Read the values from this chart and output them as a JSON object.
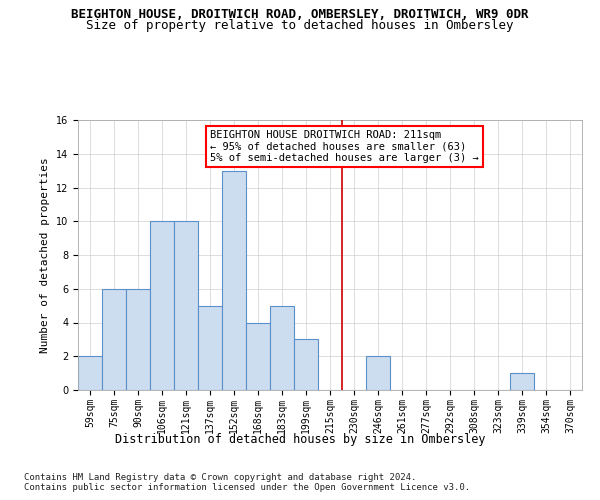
{
  "title": "BEIGHTON HOUSE, DROITWICH ROAD, OMBERSLEY, DROITWICH, WR9 0DR",
  "subtitle": "Size of property relative to detached houses in Ombersley",
  "xlabel": "Distribution of detached houses by size in Ombersley",
  "ylabel": "Number of detached properties",
  "bin_labels": [
    "59sqm",
    "75sqm",
    "90sqm",
    "106sqm",
    "121sqm",
    "137sqm",
    "152sqm",
    "168sqm",
    "183sqm",
    "199sqm",
    "215sqm",
    "230sqm",
    "246sqm",
    "261sqm",
    "277sqm",
    "292sqm",
    "308sqm",
    "323sqm",
    "339sqm",
    "354sqm",
    "370sqm"
  ],
  "bar_values": [
    2,
    6,
    6,
    10,
    10,
    5,
    13,
    4,
    5,
    3,
    0,
    0,
    2,
    0,
    0,
    0,
    0,
    0,
    1,
    0,
    0
  ],
  "bar_color": "#ccddf0",
  "bar_edge_color": "#5b8fc9",
  "ylim": [
    0,
    16
  ],
  "yticks": [
    0,
    2,
    4,
    6,
    8,
    10,
    12,
    14,
    16
  ],
  "vline_x": 10.5,
  "vline_color": "#cc0000",
  "annotation_box_text": "BEIGHTON HOUSE DROITWICH ROAD: 211sqm\n← 95% of detached houses are smaller (63)\n5% of semi-detached houses are larger (3) →",
  "footer_text": "Contains HM Land Registry data © Crown copyright and database right 2024.\nContains public sector information licensed under the Open Government Licence v3.0.",
  "title_fontsize": 9,
  "subtitle_fontsize": 9,
  "xlabel_fontsize": 8.5,
  "ylabel_fontsize": 8,
  "tick_fontsize": 7,
  "annotation_fontsize": 7.5,
  "footer_fontsize": 6.5
}
